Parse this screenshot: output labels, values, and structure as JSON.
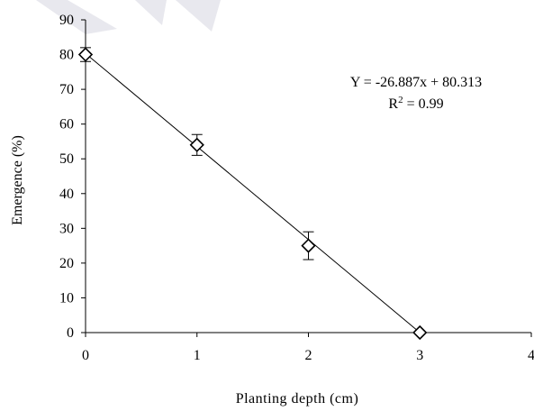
{
  "chart_data": {
    "type": "scatter",
    "title": "",
    "xlabel": "Planting depth (cm)",
    "ylabel": "Emergence (%)",
    "xlim": [
      0,
      4
    ],
    "ylim": [
      0,
      90
    ],
    "x_ticks": [
      "0",
      "1",
      "2",
      "3",
      "4"
    ],
    "y_ticks": [
      "0",
      "10",
      "20",
      "30",
      "40",
      "50",
      "60",
      "70",
      "80",
      "90"
    ],
    "grid": false,
    "legend": "none",
    "marker": "diamond-open",
    "points": [
      {
        "x": 0,
        "y": 80,
        "err": 2
      },
      {
        "x": 1,
        "y": 54,
        "err": 3
      },
      {
        "x": 2,
        "y": 25,
        "err": 4
      },
      {
        "x": 3,
        "y": 0,
        "err": 0
      }
    ],
    "trendline": {
      "slope": -26.887,
      "intercept": 80.313,
      "x_range": [
        0,
        3
      ]
    },
    "annotation": {
      "equation": "Y = -26.887x + 80.313",
      "r2_prefix": "R",
      "r2_sup": "2",
      "r2_suffix": " = 0.99"
    }
  }
}
